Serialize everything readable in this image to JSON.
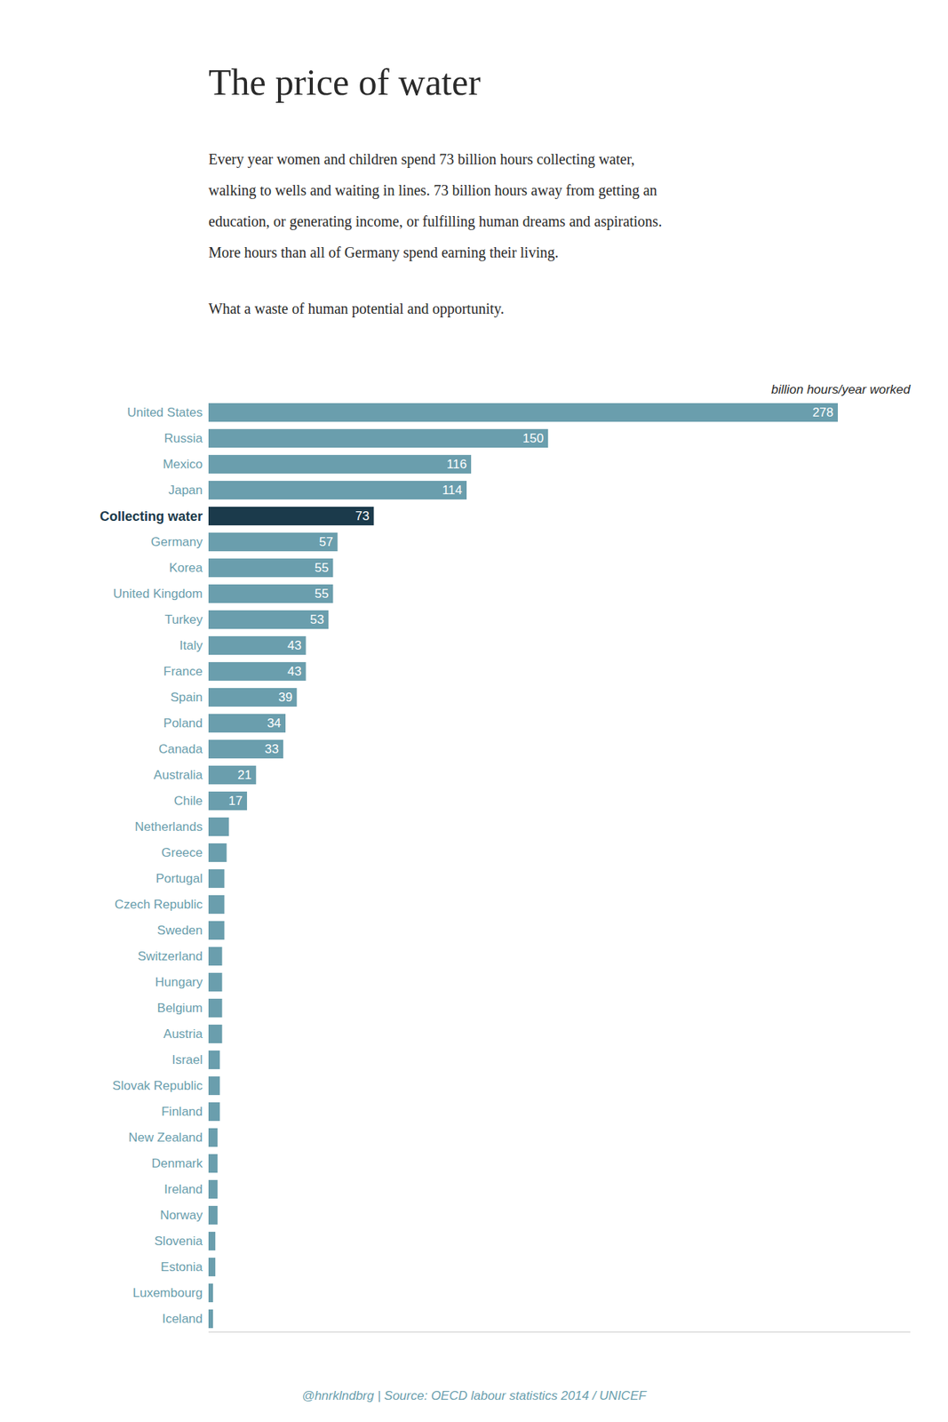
{
  "chart_data": {
    "type": "bar",
    "orientation": "horizontal",
    "title": "The price of water",
    "subtitle": [
      "Every year women and children spend 73 billion hours collecting water,",
      "walking to wells and waiting in lines. 73 billion hours away from getting an",
      "education, or generating income, or fulfilling human dreams and aspirations.",
      "More hours than all of Germany spend earning their living."
    ],
    "annotations": [
      "What a waste of human potential and opportunity."
    ],
    "footer": "@hnrklndbrg | Source: OECD labour statistics 2014 / UNICEF",
    "xlabel": "billion hours/year worked",
    "categories": [
      "United States",
      "Russia",
      "Mexico",
      "Japan",
      "Collecting water",
      "Germany",
      "Korea",
      "United Kingdom",
      "Turkey",
      "Italy",
      "France",
      "Spain",
      "Poland",
      "Canada",
      "Australia",
      "Chile",
      "Netherlands",
      "Greece",
      "Portugal",
      "Czech Republic",
      "Sweden",
      "Switzerland",
      "Hungary",
      "Belgium",
      "Austria",
      "Israel",
      "Slovak Republic",
      "Finland",
      "New Zealand",
      "Denmark",
      "Ireland",
      "Norway",
      "Slovenia",
      "Estonia",
      "Luxembourg",
      "Iceland"
    ],
    "values": [
      278,
      150,
      116,
      114,
      73,
      57,
      55,
      55,
      53,
      43,
      43,
      39,
      34,
      33,
      21,
      17,
      9,
      8,
      7,
      7,
      7,
      6,
      6,
      6,
      6,
      5,
      5,
      5,
      4,
      4,
      4,
      4,
      3,
      3,
      2,
      2
    ],
    "value_labels": [
      "278",
      "150",
      "116",
      "114",
      "73",
      "57",
      "55",
      "55",
      "53",
      "43",
      "43",
      "39",
      "34",
      "33",
      "21",
      "17",
      null,
      null,
      null,
      null,
      null,
      null,
      null,
      null,
      null,
      null,
      null,
      null,
      null,
      null,
      null,
      null,
      null,
      null,
      null,
      null
    ],
    "data_labels": true,
    "colors": [
      "#6A9EAD",
      "#6A9EAD",
      "#6A9EAD",
      "#6A9EAD",
      "#1B3A4B",
      "#6A9EAD",
      "#6A9EAD",
      "#6A9EAD",
      "#6A9EAD",
      "#6A9EAD",
      "#6A9EAD",
      "#6A9EAD",
      "#6A9EAD",
      "#6A9EAD",
      "#6A9EAD",
      "#6A9EAD",
      "#6A9EAD",
      "#6A9EAD",
      "#6A9EAD",
      "#6A9EAD",
      "#6A9EAD",
      "#6A9EAD",
      "#6A9EAD",
      "#6A9EAD",
      "#6A9EAD",
      "#6A9EAD",
      "#6A9EAD",
      "#6A9EAD",
      "#6A9EAD",
      "#6A9EAD",
      "#6A9EAD",
      "#6A9EAD",
      "#6A9EAD",
      "#6A9EAD",
      "#6A9EAD",
      "#6A9EAD"
    ],
    "xlim": [
      0,
      310
    ],
    "tick_labels": "y",
    "grid": false
  }
}
